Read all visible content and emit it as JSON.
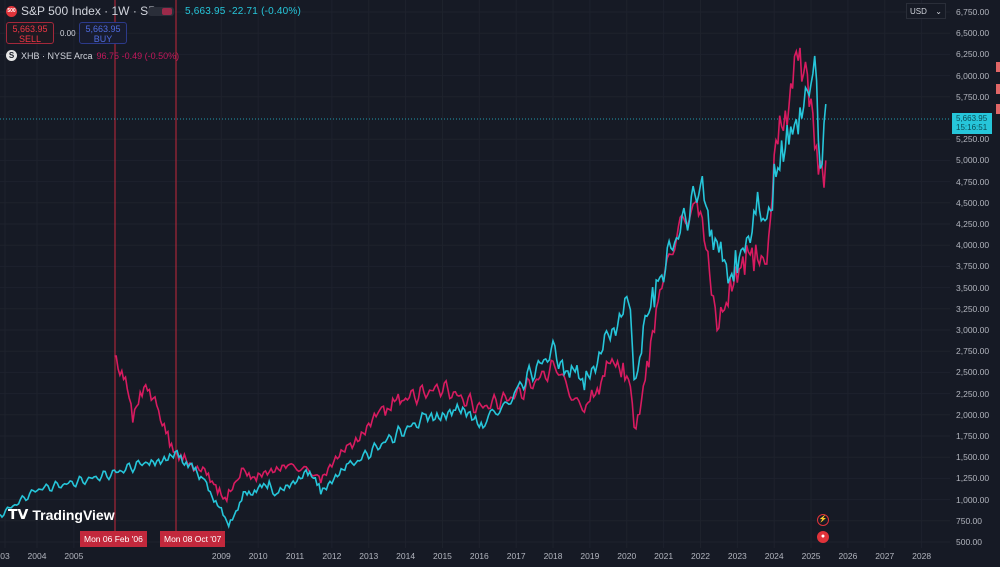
{
  "header": {
    "symbol_badge": "500",
    "title": "S&P 500 Index · 1W · SP",
    "last": "5,663.95",
    "change": "-22.71",
    "change_pct": "(-0.40%)"
  },
  "trade": {
    "sell_price": "5,663.95",
    "sell_label": "SELL",
    "spread": "0.00",
    "buy_price": "5,663.95",
    "buy_label": "BUY"
  },
  "compare": {
    "icon_letter": "S",
    "label": "XHB · NYSE Arca",
    "value": "96.75",
    "change": "-0.49",
    "change_pct": "(-0.50%)"
  },
  "currency": {
    "label": "USD",
    "chevron": "⌄"
  },
  "price_tag": {
    "price": "5,663.95",
    "countdown": "15:16:51"
  },
  "markers": {
    "start": "Mon 06 Feb '06",
    "end": "Mon 08 Oct '07"
  },
  "brand": "TradingView",
  "colors": {
    "sp500": "#26c6da",
    "xhb": "#d81b60",
    "marker": "#c2283c"
  },
  "chart_data": {
    "type": "line",
    "title": "S&P 500 Index · 1W · SP vs XHB",
    "y_ticks": [
      "6,750.00",
      "6,500.00",
      "6,250.00",
      "6,000.00",
      "5,750.00",
      "5,250.00",
      "5,000.00",
      "4,750.00",
      "4,500.00",
      "4,250.00",
      "4,000.00",
      "3,750.00",
      "3,500.00",
      "3,250.00",
      "3,000.00",
      "2,750.00",
      "2,500.00",
      "2,250.00",
      "2,000.00",
      "1,750.00",
      "1,500.00",
      "1,250.00",
      "1,000.00",
      "750.00",
      "500.00"
    ],
    "x_ticks": [
      "03",
      "2004",
      "2005",
      "2009",
      "2010",
      "2011",
      "2012",
      "2013",
      "2014",
      "2015",
      "2016",
      "2017",
      "2018",
      "2019",
      "2020",
      "2021",
      "2022",
      "2023",
      "2024",
      "2025",
      "2026",
      "2027",
      "2028"
    ],
    "ylim": [
      500,
      6750
    ],
    "xlim": [
      2003,
      2028.5
    ],
    "series": [
      {
        "name": "S&P 500",
        "x": [
          2003.0,
          2004,
          2005,
          2006,
          2007.0,
          2007.8,
          2008.5,
          2009.2,
          2009.6,
          2010.3,
          2010.5,
          2011.3,
          2011.7,
          2012.5,
          2013.5,
          2014.5,
          2015.3,
          2016.1,
          2017,
          2018.0,
          2018.2,
          2018.9,
          2019.5,
          2020.1,
          2020.2,
          2020.5,
          2021,
          2022.0,
          2022.4,
          2022.8,
          2023.3,
          2023.6,
          2023.8,
          2024.0,
          2024.5,
          2024.9,
          2025.1,
          2025.25,
          2025.4
        ],
        "values": [
          820,
          1120,
          1200,
          1300,
          1450,
          1540,
          1250,
          700,
          1050,
          1180,
          1060,
          1340,
          1120,
          1400,
          1700,
          1950,
          2080,
          1850,
          2300,
          2750,
          2600,
          2400,
          2950,
          3350,
          2300,
          3100,
          3770,
          4700,
          4000,
          3600,
          4100,
          4500,
          4200,
          4780,
          5450,
          5800,
          6100,
          4980,
          5664
        ]
      },
      {
        "name": "XHB",
        "x": [
          2006.1,
          2006.4,
          2006.6,
          2007.0,
          2007.3,
          2007.6,
          2008.0,
          2008.6,
          2009.1,
          2009.6,
          2010.0,
          2010.8,
          2011.7,
          2012.5,
          2013.3,
          2014,
          2015,
          2016,
          2017,
          2018.0,
          2018.9,
          2019.6,
          2020.1,
          2020.2,
          2020.5,
          2021,
          2021.9,
          2022.5,
          2022.8,
          2023.3,
          2023.8,
          2024.0,
          2024.7,
          2024.8,
          2025.0,
          2025.3,
          2025.4
        ],
        "values": [
          2700,
          2400,
          1980,
          2350,
          2050,
          1650,
          1480,
          1300,
          1000,
          1350,
          1250,
          1450,
          1230,
          1650,
          2050,
          2200,
          2320,
          2080,
          2230,
          2550,
          2060,
          2650,
          2400,
          1760,
          2420,
          3720,
          4530,
          3050,
          3500,
          3900,
          3800,
          5000,
          6300,
          6000,
          5600,
          4750,
          5000
        ]
      }
    ]
  }
}
